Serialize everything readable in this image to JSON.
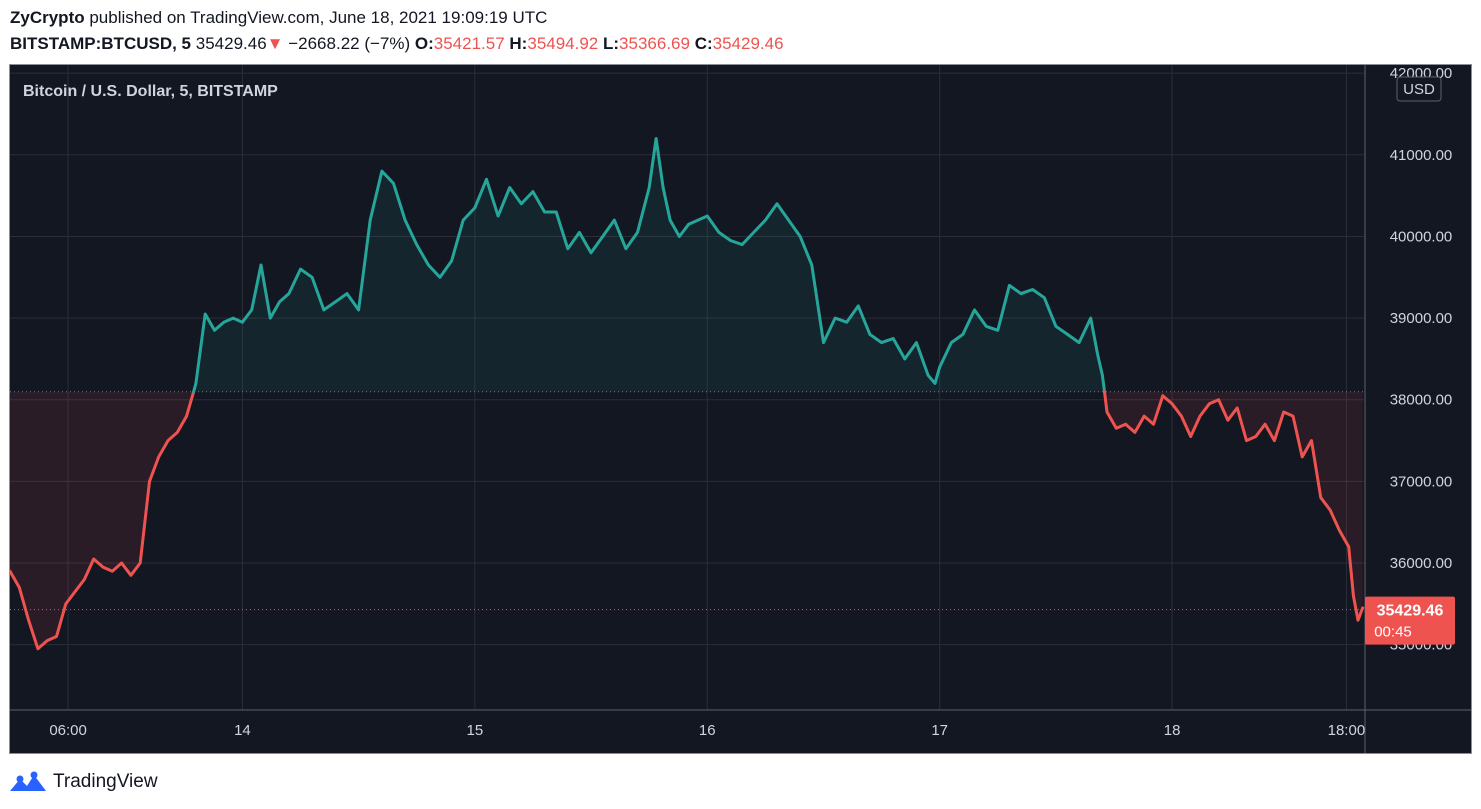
{
  "header": {
    "publisher": "ZyCrypto",
    "published_on": " published on TradingView.com, June 18, 2021 19:09:19 UTC",
    "symbol": "BITSTAMP:BTCUSD, 5",
    "last": "35429.46",
    "change_arrow": "▼",
    "change": "−2668.22 (−7%)",
    "o_label": "O:",
    "o_value": "35421.57",
    "h_label": "H:",
    "h_value": "35494.92",
    "l_label": "L:",
    "l_value": "35366.69",
    "c_label": "C:",
    "c_value": "35429.46"
  },
  "footer": {
    "brand": "TradingView",
    "logo_icon": "tradingview-logo-icon"
  },
  "chart_data": {
    "type": "line",
    "title": "Bitcoin / U.S. Dollar, 5, BITSTAMP",
    "currency_badge": "USD",
    "ylim": [
      34200,
      42100
    ],
    "y_ticks": [
      42000,
      41000,
      40000,
      39000,
      38000,
      37000,
      36000,
      35000
    ],
    "y_tick_labels": [
      "42000.00",
      "41000.00",
      "40000.00",
      "39000.00",
      "38000.00",
      "37000.00",
      "36000.00",
      "35000.00"
    ],
    "x_range": [
      13.0,
      18.83
    ],
    "x_ticks": [
      {
        "x": 13.25,
        "label": "06:00"
      },
      {
        "x": 14.0,
        "label": "14"
      },
      {
        "x": 15.0,
        "label": "15"
      },
      {
        "x": 16.0,
        "label": "16"
      },
      {
        "x": 17.0,
        "label": "17"
      },
      {
        "x": 18.0,
        "label": "18"
      },
      {
        "x": 18.75,
        "label": "18:00"
      }
    ],
    "baseline": 38097.68,
    "last_price": 35429.46,
    "last_price_label": "35429.46",
    "countdown": "00:45",
    "colors": {
      "up": "#26a69a",
      "down": "#ef5350",
      "background": "#131722",
      "grid": "#2a2e39",
      "text": "#d1d4dc"
    },
    "x": [
      13.0,
      13.04,
      13.08,
      13.12,
      13.16,
      13.2,
      13.24,
      13.28,
      13.32,
      13.36,
      13.4,
      13.44,
      13.48,
      13.52,
      13.56,
      13.6,
      13.64,
      13.68,
      13.72,
      13.76,
      13.8,
      13.84,
      13.88,
      13.92,
      13.96,
      14.0,
      14.04,
      14.08,
      14.12,
      14.16,
      14.2,
      14.25,
      14.3,
      14.35,
      14.4,
      14.45,
      14.5,
      14.55,
      14.6,
      14.65,
      14.7,
      14.75,
      14.8,
      14.85,
      14.9,
      14.95,
      15.0,
      15.05,
      15.1,
      15.15,
      15.2,
      15.25,
      15.3,
      15.35,
      15.4,
      15.45,
      15.5,
      15.55,
      15.6,
      15.65,
      15.7,
      15.75,
      15.78,
      15.81,
      15.84,
      15.88,
      15.92,
      15.96,
      16.0,
      16.05,
      16.1,
      16.15,
      16.2,
      16.25,
      16.3,
      16.35,
      16.4,
      16.45,
      16.5,
      16.55,
      16.6,
      16.65,
      16.7,
      16.75,
      16.8,
      16.85,
      16.9,
      16.95,
      16.98,
      17.0,
      17.05,
      17.1,
      17.15,
      17.2,
      17.25,
      17.3,
      17.35,
      17.4,
      17.45,
      17.5,
      17.55,
      17.6,
      17.65,
      17.68,
      17.7,
      17.72,
      17.76,
      17.8,
      17.84,
      17.88,
      17.92,
      17.96,
      18.0,
      18.04,
      18.08,
      18.12,
      18.16,
      18.2,
      18.24,
      18.28,
      18.32,
      18.36,
      18.4,
      18.44,
      18.48,
      18.52,
      18.56,
      18.6,
      18.64,
      18.68,
      18.72,
      18.76,
      18.78,
      18.8,
      18.82
    ],
    "y": [
      35900,
      35700,
      35300,
      34950,
      35050,
      35100,
      35500,
      35650,
      35800,
      36050,
      35950,
      35900,
      36000,
      35850,
      36000,
      37000,
      37300,
      37500,
      37600,
      37800,
      38200,
      39050,
      38850,
      38950,
      39000,
      38950,
      39100,
      39650,
      39000,
      39200,
      39300,
      39600,
      39500,
      39100,
      39200,
      39300,
      39100,
      40200,
      40800,
      40650,
      40200,
      39900,
      39650,
      39500,
      39700,
      40200,
      40350,
      40700,
      40250,
      40600,
      40400,
      40550,
      40300,
      40300,
      39850,
      40050,
      39800,
      40000,
      40200,
      39850,
      40050,
      40600,
      41200,
      40600,
      40200,
      40000,
      40150,
      40200,
      40250,
      40050,
      39950,
      39900,
      40050,
      40200,
      40400,
      40200,
      40000,
      39650,
      38700,
      39000,
      38950,
      39150,
      38800,
      38700,
      38750,
      38500,
      38700,
      38300,
      38200,
      38400,
      38700,
      38800,
      39100,
      38900,
      38850,
      39400,
      39300,
      39350,
      39250,
      38900,
      38800,
      38700,
      39000,
      38550,
      38300,
      37850,
      37650,
      37700,
      37600,
      37800,
      37700,
      38050,
      37950,
      37800,
      37550,
      37800,
      37950,
      38000,
      37750,
      37900,
      37500,
      37550,
      37700,
      37500,
      37850,
      37800,
      37300,
      37500,
      36800,
      36650,
      36400,
      36200,
      35600,
      35300,
      35450
    ]
  }
}
